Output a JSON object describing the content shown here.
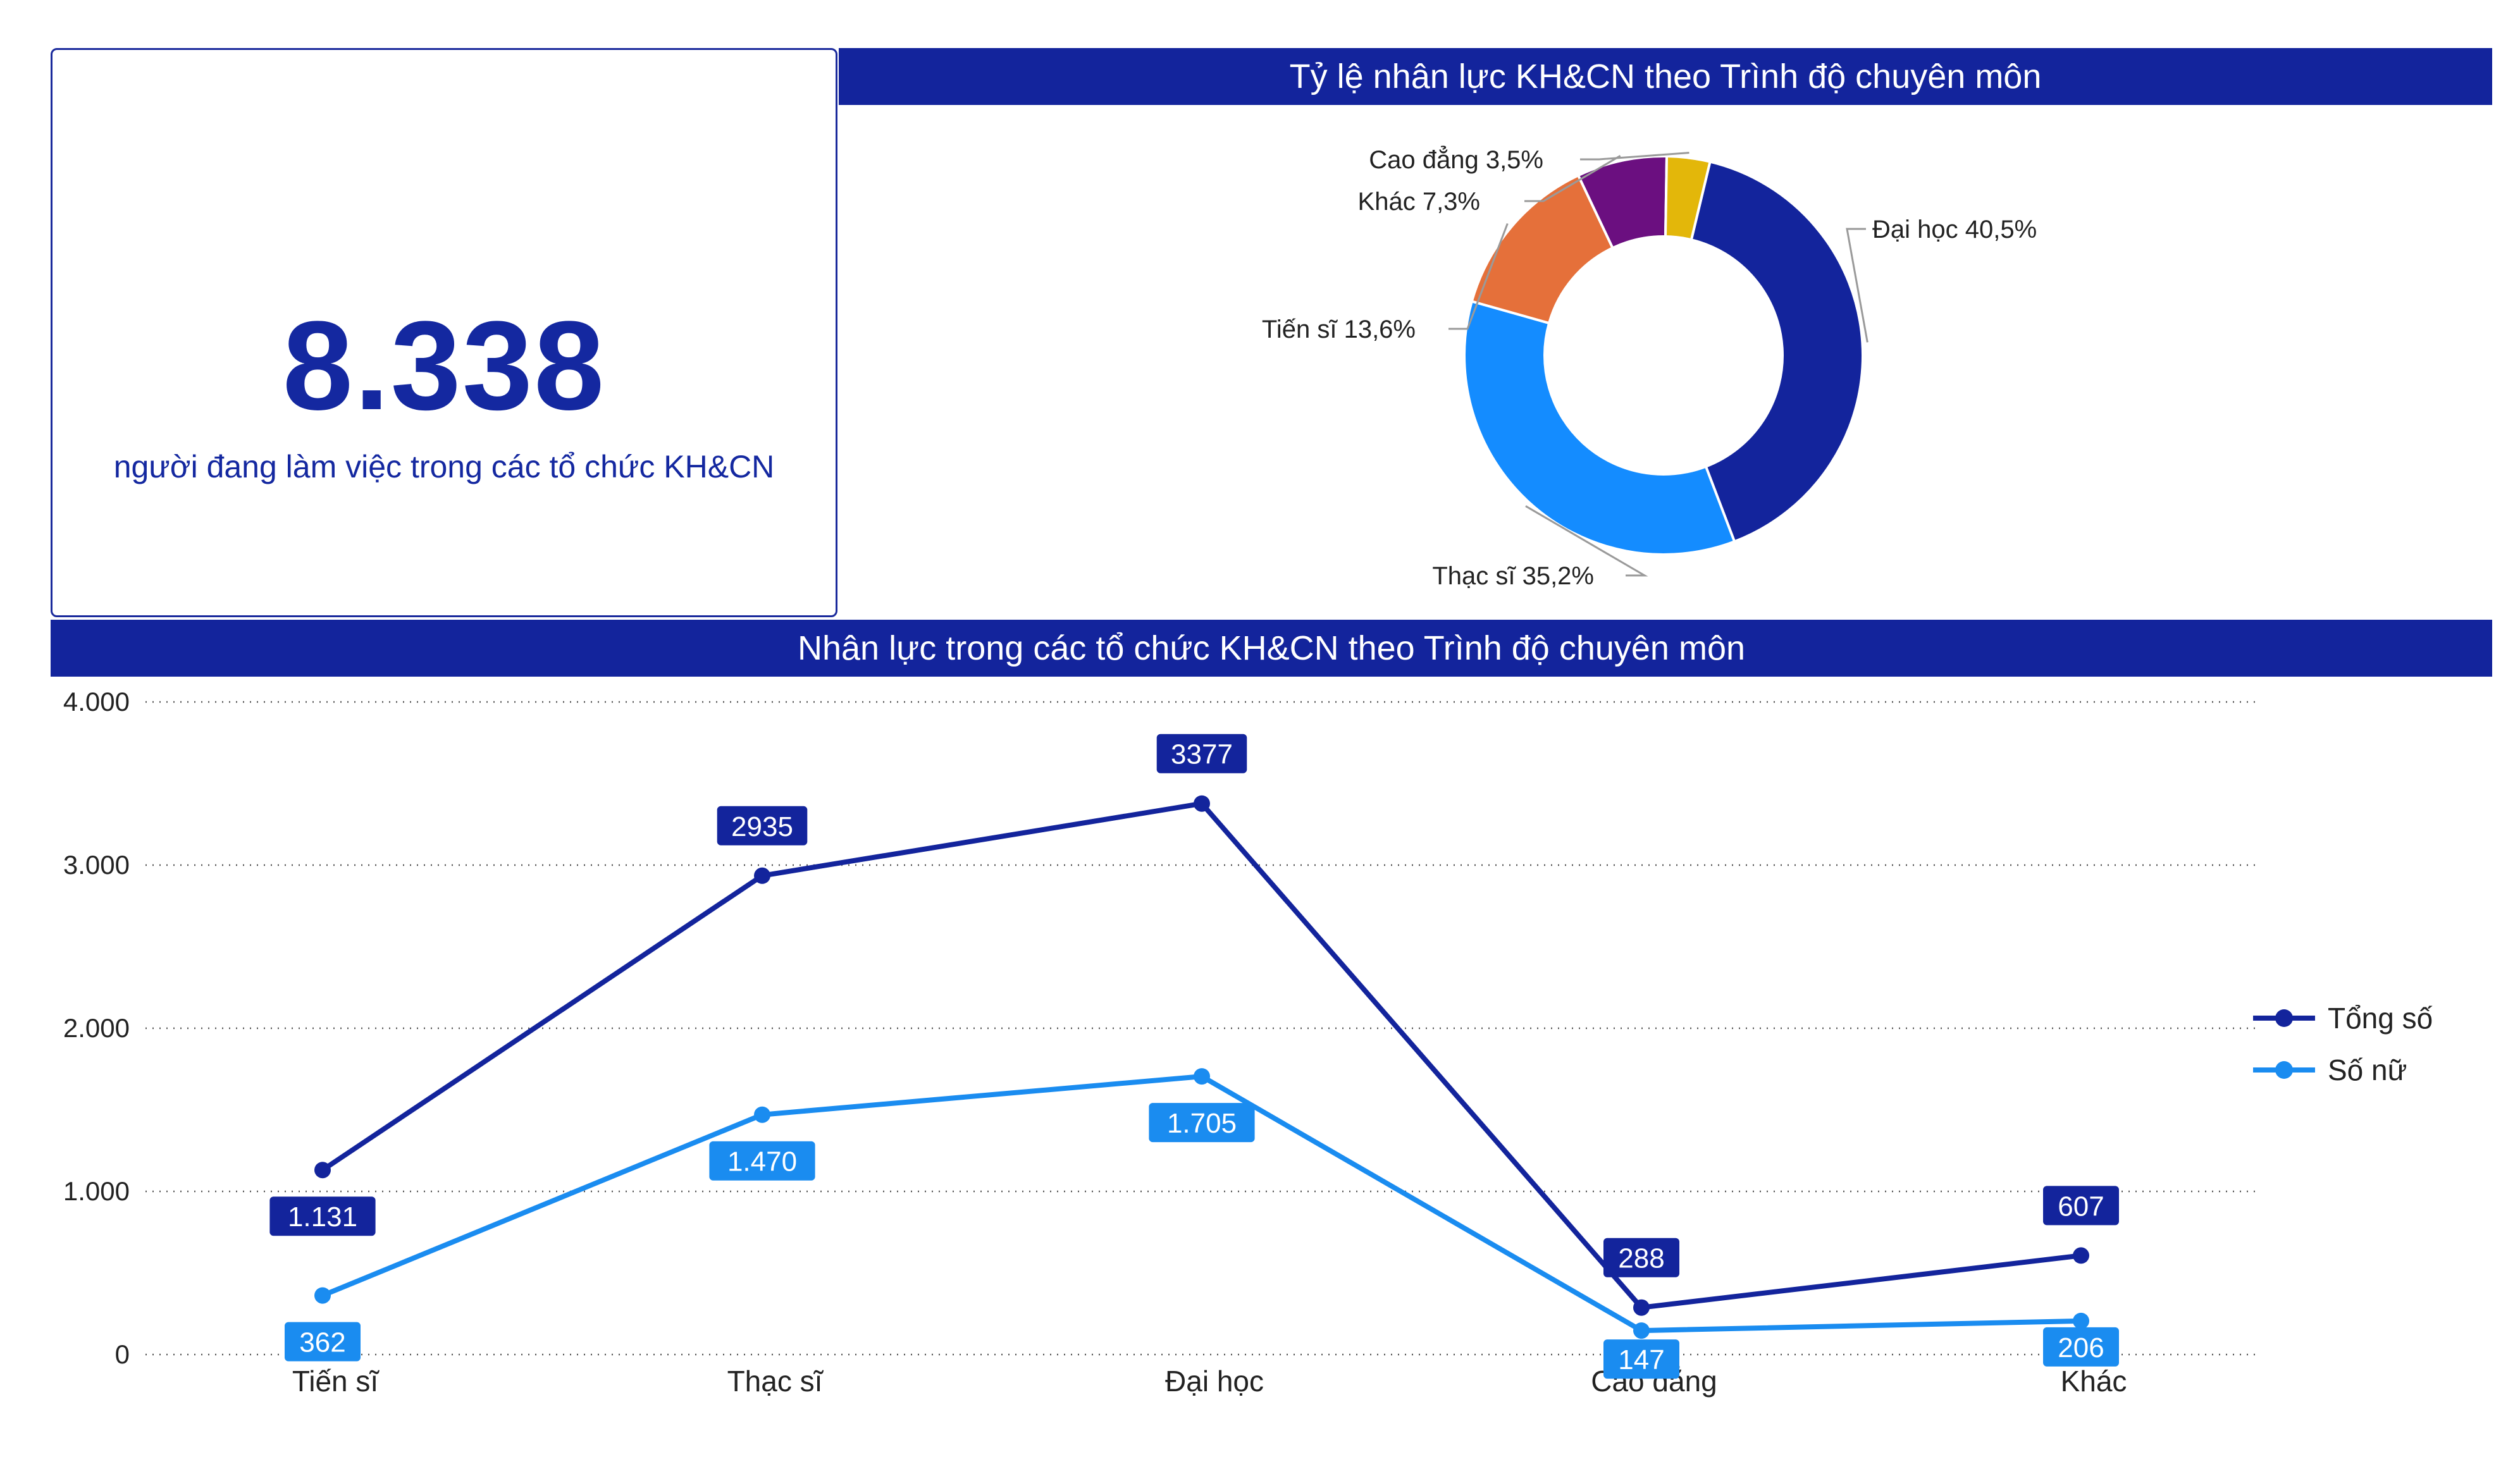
{
  "kpi": {
    "value": "8.338",
    "label": "người đang làm việc trong các tổ chức KH&CN"
  },
  "colors": {
    "banner": "#13249c",
    "dai_hoc": "#13249c",
    "thac_si": "#148cff",
    "tien_si": "#e5703a",
    "khac": "#6b0f80",
    "cao_dang": "#e3b70a",
    "tong_so": "#13249c",
    "so_nu": "#1a8cf0"
  },
  "chart_data": [
    {
      "type": "pie",
      "title": "Tỷ lệ nhân lực KH&CN theo Trình độ chuyên môn",
      "slices": [
        {
          "name": "Đại học",
          "value": 40.5,
          "label": "Đại học 40,5%"
        },
        {
          "name": "Thạc sĩ",
          "value": 35.2,
          "label": "Thạc sĩ 35,2%"
        },
        {
          "name": "Tiến sĩ",
          "value": 13.6,
          "label": "Tiến sĩ 13,6%"
        },
        {
          "name": "Khác",
          "value": 7.3,
          "label": "Khác 7,3%"
        },
        {
          "name": "Cao đẳng",
          "value": 3.5,
          "label": "Cao đẳng 3,5%"
        }
      ]
    },
    {
      "type": "line",
      "title": "Nhân lực trong các tổ chức KH&CN theo Trình độ chuyên môn",
      "categories": [
        "Tiến sĩ",
        "Thạc sĩ",
        "Đại học",
        "Cao đẳng",
        "Khác"
      ],
      "ylim": [
        0,
        4000
      ],
      "yticks": [
        0,
        1000,
        2000,
        3000,
        4000
      ],
      "ytick_labels": [
        "0",
        "1.000",
        "2.000",
        "3.000",
        "4.000"
      ],
      "grid": "horizontal dotted",
      "legend_position": "right",
      "series": [
        {
          "name": "Tổng số",
          "values": [
            1131,
            2935,
            3377,
            288,
            607
          ],
          "labels": [
            "1.131",
            "2935",
            "3377",
            "288",
            "607"
          ]
        },
        {
          "name": "Số nữ",
          "values": [
            362,
            1470,
            1705,
            147,
            206
          ],
          "labels": [
            "362",
            "1.470",
            "1.705",
            "147",
            "206"
          ]
        }
      ]
    }
  ]
}
